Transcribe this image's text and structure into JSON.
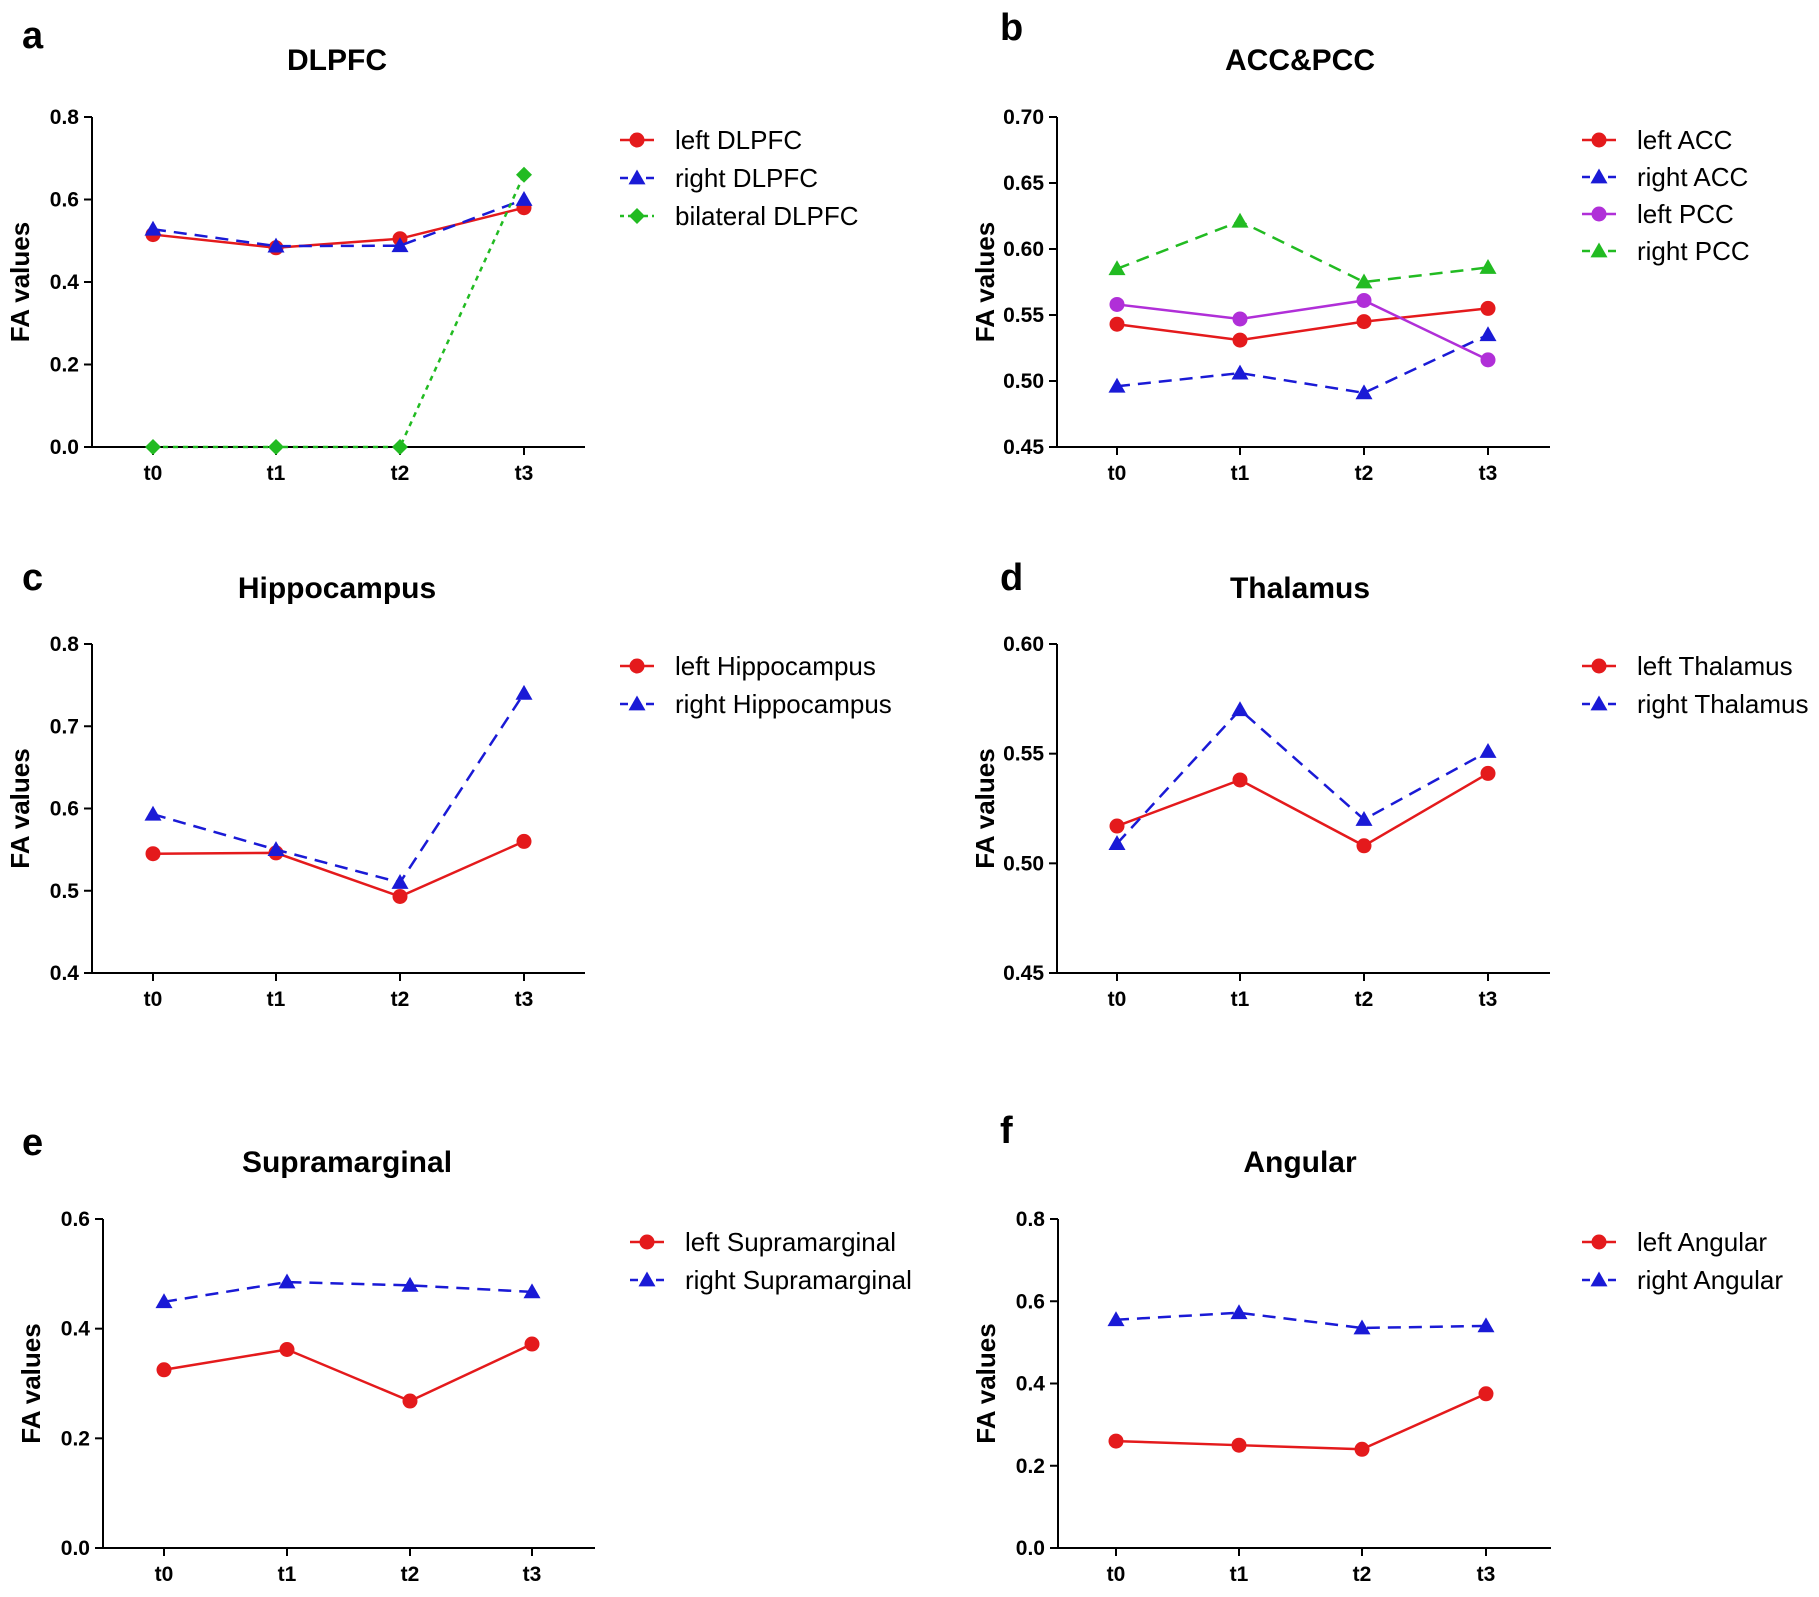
{
  "figure": {
    "domain": "Chart"
  },
  "chart_data": [
    {
      "panel": "a",
      "type": "line",
      "title": "DLPFC",
      "xlabel": "",
      "ylabel": "FA values",
      "categories": [
        "t0",
        "t1",
        "t2",
        "t3"
      ],
      "ylim": [
        0.0,
        0.8
      ],
      "yticks": [
        "0.0",
        "0.2",
        "0.4",
        "0.6",
        "0.8"
      ],
      "legend_position": "right",
      "series": [
        {
          "name": "left DLPFC",
          "values": [
            0.515,
            0.483,
            0.505,
            0.58
          ],
          "color": "#e41a1c",
          "dash": "solid",
          "marker": "circle"
        },
        {
          "name": "right DLPFC",
          "values": [
            0.528,
            0.487,
            0.488,
            0.6
          ],
          "color": "#1a1ad6",
          "dash": "dashed",
          "marker": "triangle"
        },
        {
          "name": "bilateral DLPFC",
          "values": [
            0.0,
            0.0,
            0.0,
            0.66
          ],
          "color": "#22bb22",
          "dash": "dotted",
          "marker": "diamond"
        }
      ]
    },
    {
      "panel": "b",
      "type": "line",
      "title": "ACC&PCC",
      "xlabel": "",
      "ylabel": "FA values",
      "categories": [
        "t0",
        "t1",
        "t2",
        "t3"
      ],
      "ylim": [
        0.45,
        0.7
      ],
      "yticks": [
        "0.45",
        "0.50",
        "0.55",
        "0.60",
        "0.65",
        "0.70"
      ],
      "legend_position": "right",
      "series": [
        {
          "name": "left ACC",
          "values": [
            0.543,
            0.531,
            0.545,
            0.555
          ],
          "color": "#e41a1c",
          "dash": "solid",
          "marker": "circle"
        },
        {
          "name": "right ACC",
          "values": [
            0.496,
            0.506,
            0.491,
            0.535
          ],
          "color": "#1a1ad6",
          "dash": "dashed",
          "marker": "triangle"
        },
        {
          "name": "left PCC",
          "values": [
            0.558,
            0.547,
            0.561,
            0.516
          ],
          "color": "#b02fd8",
          "dash": "solid",
          "marker": "circle"
        },
        {
          "name": "right PCC",
          "values": [
            0.585,
            0.621,
            0.575,
            0.586
          ],
          "color": "#22bb22",
          "dash": "dashed",
          "marker": "triangle"
        }
      ]
    },
    {
      "panel": "c",
      "type": "line",
      "title": "Hippocampus",
      "xlabel": "",
      "ylabel": "FA values",
      "categories": [
        "t0",
        "t1",
        "t2",
        "t3"
      ],
      "ylim": [
        0.4,
        0.8
      ],
      "yticks": [
        "0.4",
        "0.5",
        "0.6",
        "0.7",
        "0.8"
      ],
      "legend_position": "right",
      "series": [
        {
          "name": "left Hippocampus",
          "values": [
            0.545,
            0.546,
            0.493,
            0.56
          ],
          "color": "#e41a1c",
          "dash": "solid",
          "marker": "circle"
        },
        {
          "name": "right Hippocampus",
          "values": [
            0.593,
            0.55,
            0.51,
            0.74
          ],
          "color": "#1a1ad6",
          "dash": "dashed",
          "marker": "triangle"
        }
      ]
    },
    {
      "panel": "d",
      "type": "line",
      "title": "Thalamus",
      "xlabel": "",
      "ylabel": "FA values",
      "categories": [
        "t0",
        "t1",
        "t2",
        "t3"
      ],
      "ylim": [
        0.45,
        0.6
      ],
      "yticks": [
        "0.45",
        "0.50",
        "0.55",
        "0.60"
      ],
      "legend_position": "right",
      "series": [
        {
          "name": "left Thalamus",
          "values": [
            0.517,
            0.538,
            0.508,
            0.541
          ],
          "color": "#e41a1c",
          "dash": "solid",
          "marker": "circle"
        },
        {
          "name": "right Thalamus",
          "values": [
            0.509,
            0.57,
            0.52,
            0.551
          ],
          "color": "#1a1ad6",
          "dash": "dashed",
          "marker": "triangle"
        }
      ]
    },
    {
      "panel": "e",
      "type": "line",
      "title": "Supramarginal",
      "xlabel": "",
      "ylabel": "FA values",
      "categories": [
        "t0",
        "t1",
        "t2",
        "t3"
      ],
      "ylim": [
        0.0,
        0.6
      ],
      "yticks": [
        "0.0",
        "0.2",
        "0.4",
        "0.6"
      ],
      "legend_position": "right",
      "series": [
        {
          "name": "left Supramarginal",
          "values": [
            0.325,
            0.362,
            0.268,
            0.372
          ],
          "color": "#e41a1c",
          "dash": "solid",
          "marker": "circle"
        },
        {
          "name": "right Supramarginal",
          "values": [
            0.449,
            0.485,
            0.479,
            0.467
          ],
          "color": "#1a1ad6",
          "dash": "dashed",
          "marker": "triangle"
        }
      ]
    },
    {
      "panel": "f",
      "type": "line",
      "title": "Angular",
      "xlabel": "",
      "ylabel": "FA values",
      "categories": [
        "t0",
        "t1",
        "t2",
        "t3"
      ],
      "ylim": [
        0.0,
        0.8
      ],
      "yticks": [
        "0.0",
        "0.2",
        "0.4",
        "0.6",
        "0.8"
      ],
      "legend_position": "right",
      "series": [
        {
          "name": "left Angular",
          "values": [
            0.26,
            0.25,
            0.24,
            0.375
          ],
          "color": "#e41a1c",
          "dash": "solid",
          "marker": "circle"
        },
        {
          "name": "right Angular",
          "values": [
            0.555,
            0.572,
            0.535,
            0.54
          ],
          "color": "#1a1ad6",
          "dash": "dashed",
          "marker": "triangle"
        }
      ]
    }
  ]
}
